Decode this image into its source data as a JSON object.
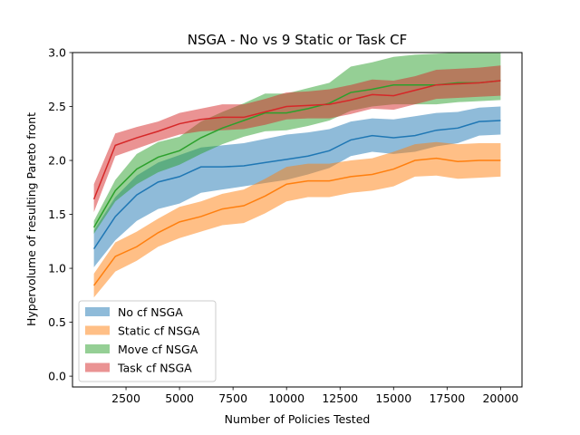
{
  "chart_data": {
    "type": "line",
    "title": "NSGA - No vs 9 Static or Task CF",
    "xlabel": "Number of Policies Tested",
    "ylabel": "Hypervolume of resulting Pareto front",
    "xlim": [
      0,
      21000
    ],
    "ylim": [
      -0.1,
      3.0
    ],
    "xticks": [
      2500,
      5000,
      7500,
      10000,
      12500,
      15000,
      17500,
      20000
    ],
    "xtick_labels": [
      "2500",
      "5000",
      "7500",
      "10000",
      "12500",
      "15000",
      "17500",
      "20000"
    ],
    "yticks": [
      0.0,
      0.5,
      1.0,
      1.5,
      2.0,
      2.5,
      3.0
    ],
    "ytick_labels": [
      "0.0",
      "0.5",
      "1.0",
      "1.5",
      "2.0",
      "2.5",
      "3.0"
    ],
    "grid": false,
    "legend": "lower-left",
    "series": [
      {
        "name": "No cf NSGA",
        "color": "#1f77b4",
        "x": [
          1000,
          2000,
          3000,
          4000,
          5000,
          6000,
          7000,
          8000,
          9000,
          10000,
          11000,
          12000,
          13000,
          14000,
          15000,
          16000,
          17000,
          18000,
          19000,
          20000
        ],
        "y": [
          1.18,
          1.48,
          1.68,
          1.8,
          1.85,
          1.94,
          1.94,
          1.95,
          1.98,
          2.01,
          2.04,
          2.09,
          2.19,
          2.23,
          2.21,
          2.23,
          2.28,
          2.3,
          2.36,
          2.37
        ],
        "lower": [
          1.01,
          1.26,
          1.44,
          1.55,
          1.6,
          1.7,
          1.73,
          1.76,
          1.79,
          1.82,
          1.87,
          1.93,
          2.04,
          2.08,
          2.06,
          2.08,
          2.13,
          2.16,
          2.23,
          2.24
        ],
        "upper": [
          1.35,
          1.66,
          1.86,
          1.98,
          2.05,
          2.12,
          2.14,
          2.16,
          2.2,
          2.24,
          2.26,
          2.29,
          2.36,
          2.39,
          2.38,
          2.41,
          2.44,
          2.45,
          2.49,
          2.5
        ]
      },
      {
        "name": "Static cf NSGA",
        "color": "#ff7f0e",
        "x": [
          1000,
          2000,
          3000,
          4000,
          5000,
          6000,
          7000,
          8000,
          9000,
          10000,
          11000,
          12000,
          13000,
          14000,
          15000,
          16000,
          17000,
          18000,
          19000,
          20000
        ],
        "y": [
          0.84,
          1.11,
          1.2,
          1.33,
          1.43,
          1.48,
          1.55,
          1.58,
          1.67,
          1.78,
          1.81,
          1.81,
          1.85,
          1.87,
          1.92,
          2.0,
          2.02,
          1.99,
          2.0,
          2.0
        ],
        "lower": [
          0.73,
          0.97,
          1.07,
          1.2,
          1.28,
          1.34,
          1.4,
          1.42,
          1.51,
          1.62,
          1.66,
          1.66,
          1.7,
          1.72,
          1.76,
          1.85,
          1.86,
          1.83,
          1.84,
          1.85
        ],
        "upper": [
          0.95,
          1.24,
          1.34,
          1.46,
          1.57,
          1.62,
          1.69,
          1.73,
          1.83,
          1.94,
          1.97,
          1.97,
          2.0,
          2.02,
          2.08,
          2.15,
          2.17,
          2.15,
          2.16,
          2.16
        ]
      },
      {
        "name": "Move cf NSGA",
        "color": "#2ca02c",
        "x": [
          1000,
          2000,
          3000,
          4000,
          5000,
          6000,
          7000,
          8000,
          9000,
          10000,
          11000,
          12000,
          13000,
          14000,
          15000,
          16000,
          17000,
          18000,
          19000,
          20000
        ],
        "y": [
          1.38,
          1.72,
          1.92,
          2.03,
          2.09,
          2.21,
          2.3,
          2.37,
          2.44,
          2.44,
          2.48,
          2.53,
          2.63,
          2.66,
          2.7,
          2.7,
          2.7,
          2.72,
          2.72,
          2.74
        ],
        "lower": [
          1.32,
          1.62,
          1.78,
          1.89,
          1.96,
          2.06,
          2.15,
          2.22,
          2.27,
          2.28,
          2.32,
          2.37,
          2.46,
          2.5,
          2.52,
          2.52,
          2.52,
          2.54,
          2.55,
          2.56
        ],
        "upper": [
          1.44,
          1.82,
          2.06,
          2.17,
          2.22,
          2.36,
          2.45,
          2.53,
          2.62,
          2.62,
          2.67,
          2.72,
          2.87,
          2.91,
          2.96,
          2.98,
          2.99,
          3.0,
          3.0,
          3.0
        ]
      },
      {
        "name": "Task cf NSGA",
        "color": "#d62728",
        "x": [
          1000,
          2000,
          3000,
          4000,
          5000,
          6000,
          7000,
          8000,
          9000,
          10000,
          11000,
          12000,
          13000,
          14000,
          15000,
          16000,
          17000,
          18000,
          19000,
          20000
        ],
        "y": [
          1.64,
          2.14,
          2.21,
          2.27,
          2.34,
          2.38,
          2.4,
          2.4,
          2.45,
          2.5,
          2.51,
          2.52,
          2.56,
          2.61,
          2.6,
          2.65,
          2.7,
          2.71,
          2.72,
          2.74
        ],
        "lower": [
          1.52,
          2.04,
          2.11,
          2.18,
          2.24,
          2.27,
          2.28,
          2.29,
          2.33,
          2.38,
          2.39,
          2.39,
          2.43,
          2.48,
          2.47,
          2.52,
          2.57,
          2.58,
          2.59,
          2.6
        ],
        "upper": [
          1.78,
          2.25,
          2.31,
          2.36,
          2.44,
          2.48,
          2.52,
          2.52,
          2.57,
          2.63,
          2.64,
          2.66,
          2.7,
          2.75,
          2.74,
          2.78,
          2.84,
          2.85,
          2.86,
          2.88
        ]
      }
    ]
  }
}
